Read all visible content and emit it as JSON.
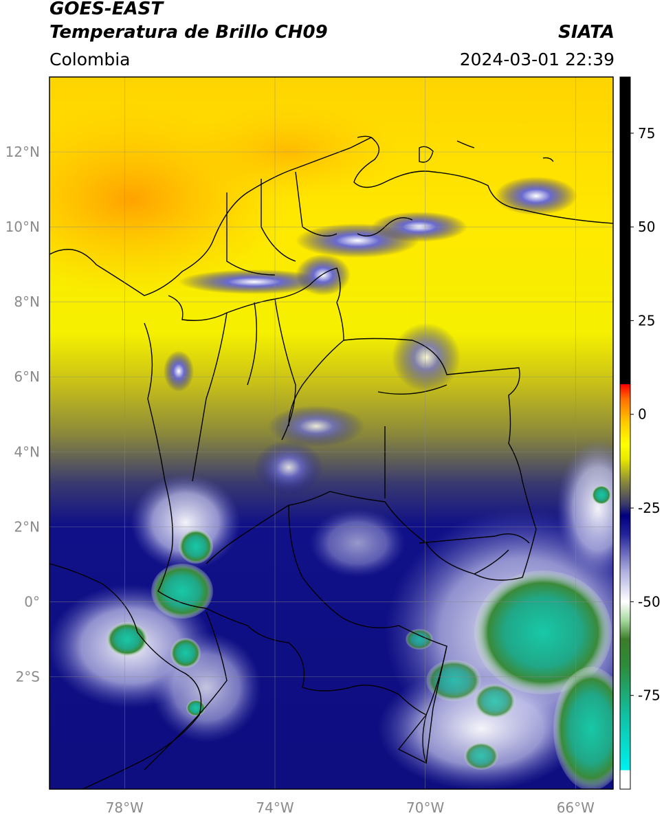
{
  "header": {
    "satellite": "GOES-EAST",
    "product": "Temperatura de Brillo CH09",
    "region": "Colombia",
    "source": "SIATA",
    "datetime": "2024-03-01 22:39"
  },
  "axes": {
    "latitude_ticks": [
      {
        "label": "12°N",
        "value": 12
      },
      {
        "label": "10°N",
        "value": 10
      },
      {
        "label": "8°N",
        "value": 8
      },
      {
        "label": "6°N",
        "value": 6
      },
      {
        "label": "4°N",
        "value": 4
      },
      {
        "label": "2°N",
        "value": 2
      },
      {
        "label": "0°",
        "value": 0
      },
      {
        "label": "2°S",
        "value": -2
      }
    ],
    "longitude_ticks": [
      {
        "label": "78°W",
        "value": -78
      },
      {
        "label": "74°W",
        "value": -74
      },
      {
        "label": "70°W",
        "value": -70
      },
      {
        "label": "66°W",
        "value": -66
      }
    ],
    "lat_range": [
      -5.0,
      14.0
    ],
    "lon_range": [
      -80.0,
      -65.0
    ],
    "grid": true
  },
  "colorbar": {
    "range": [
      -100,
      90
    ],
    "ticks": [
      {
        "label": "75",
        "value": 75
      },
      {
        "label": "50",
        "value": 50
      },
      {
        "label": "25",
        "value": 25
      },
      {
        "label": "0",
        "value": 0
      },
      {
        "label": "-25",
        "value": -25
      },
      {
        "label": "-50",
        "value": -50
      },
      {
        "label": "-75",
        "value": -75
      }
    ],
    "stops": [
      {
        "value": -100,
        "color": "#ffffff"
      },
      {
        "value": -95,
        "color": "#ffffff"
      },
      {
        "value": -94.9,
        "color": "#00f0f0"
      },
      {
        "value": -80,
        "color": "#10c0a0"
      },
      {
        "value": -67,
        "color": "#2e8b3a"
      },
      {
        "value": -60,
        "color": "#3b7d2a"
      },
      {
        "value": -55,
        "color": "#a8d8a0"
      },
      {
        "value": -50,
        "color": "#ffffff"
      },
      {
        "value": -42,
        "color": "#b0b0e0"
      },
      {
        "value": -32,
        "color": "#22229a"
      },
      {
        "value": -27,
        "color": "#00007f"
      },
      {
        "value": -24,
        "color": "#3a3a6a"
      },
      {
        "value": -18,
        "color": "#8a8a3a"
      },
      {
        "value": -12,
        "color": "#e8e800"
      },
      {
        "value": -8,
        "color": "#ffff00"
      },
      {
        "value": -2,
        "color": "#ffc800"
      },
      {
        "value": 4,
        "color": "#ff7000"
      },
      {
        "value": 8,
        "color": "#ff0000"
      },
      {
        "value": 8.1,
        "color": "#000000"
      },
      {
        "value": 90,
        "color": "#000000"
      }
    ]
  }
}
